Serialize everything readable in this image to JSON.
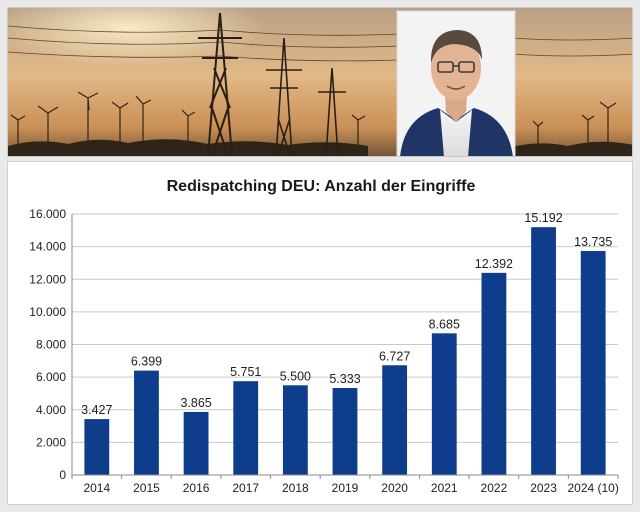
{
  "banner": {
    "image": "power-lines-wind-turbines-sunset-with-portrait-photo"
  },
  "colors": {
    "bar": "#0d3d8b",
    "grid": "#c9c9c9",
    "axis": "#8a8a8a"
  },
  "chart_data": {
    "type": "bar",
    "title": "Redispatching DEU: Anzahl der Eingriffe",
    "xlabel": "",
    "ylabel": "",
    "ylim": [
      0,
      16000
    ],
    "grid": true,
    "categories": [
      "2014",
      "2015",
      "2016",
      "2017",
      "2018",
      "2019",
      "2020",
      "2021",
      "2022",
      "2023",
      "2024 (10)"
    ],
    "values": [
      3427,
      6399,
      3865,
      5751,
      5500,
      5333,
      6727,
      8685,
      12392,
      15192,
      13735
    ],
    "value_labels": [
      "3.427",
      "6.399",
      "3.865",
      "5.751",
      "5.500",
      "5.333",
      "6.727",
      "8.685",
      "12.392",
      "15.192",
      "13.735"
    ],
    "y_ticks": [
      0,
      2000,
      4000,
      6000,
      8000,
      10000,
      12000,
      14000,
      16000
    ],
    "y_tick_labels": [
      "0",
      "2.000",
      "4.000",
      "6.000",
      "8.000",
      "10.000",
      "12.000",
      "14.000",
      "16.000"
    ]
  }
}
